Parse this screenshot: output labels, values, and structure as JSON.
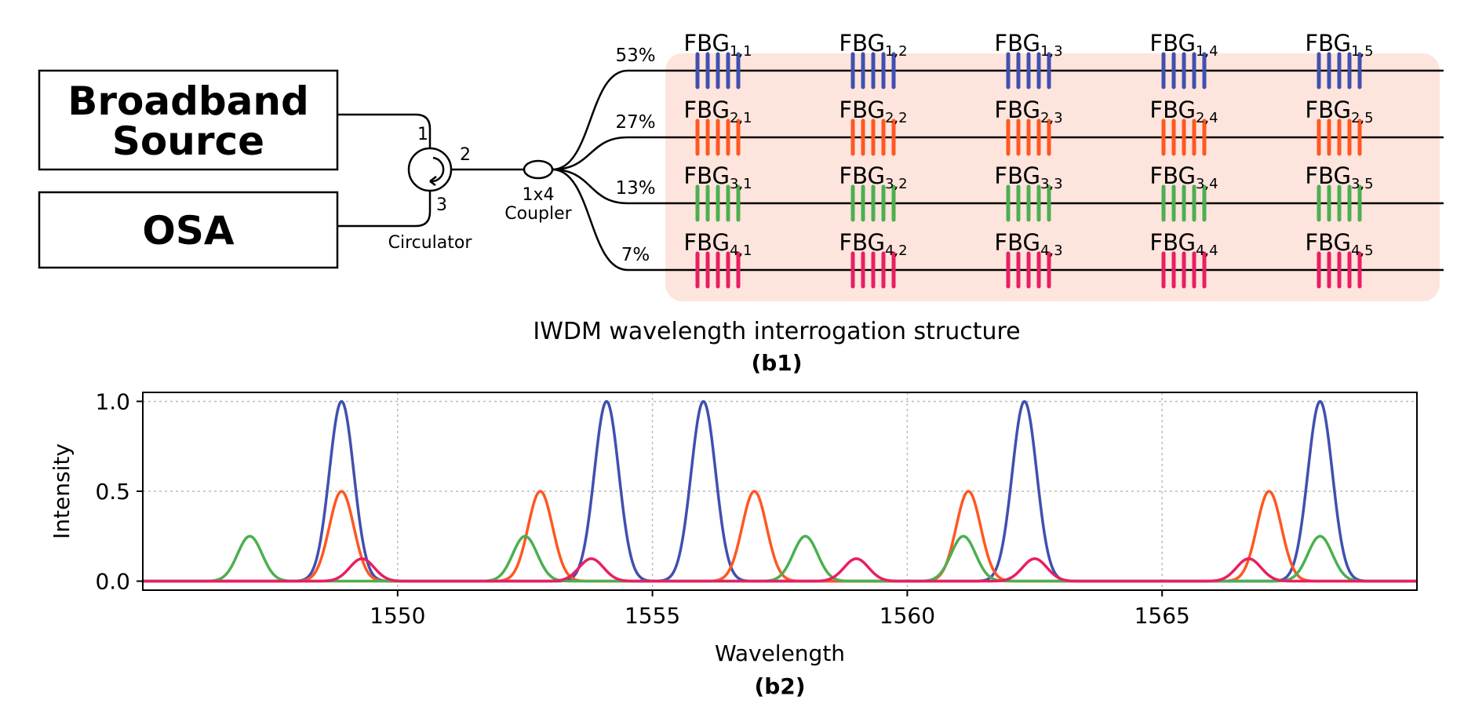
{
  "diagram": {
    "source_label_line1": "Broadband",
    "source_label_line2": "Source",
    "osa_label": "OSA",
    "circulator_label": "Circulator",
    "port1": "1",
    "port2": "2",
    "port3": "3",
    "coupler_line1": "1x4",
    "coupler_line2": "Coupler",
    "branch_ratios": [
      "53%",
      "27%",
      "13%",
      "7%"
    ],
    "fbg_prefix": "FBG",
    "fbg_subscripts": [
      [
        "1,1",
        "1,2",
        "1,3",
        "1,4",
        "1,5"
      ],
      [
        "2,1",
        "2,2",
        "2,3",
        "2,4",
        "2,5"
      ],
      [
        "3,1",
        "3,2",
        "3,3",
        "3,4",
        "3,5"
      ],
      [
        "4,1",
        "4,2",
        "4,3",
        "4,4",
        "4,5"
      ]
    ],
    "row_colors": [
      "#4050b0",
      "#ff5722",
      "#4caf50",
      "#e91e63"
    ],
    "shade_color": "#fde4dc",
    "caption": "IWDM wavelength interrogation structure",
    "panel_label": "(b1)"
  },
  "chart_data": {
    "type": "line",
    "xlabel": "Wavelength",
    "ylabel": "Intensity",
    "panel_label": "(b2)",
    "xlim": [
      1545,
      1570
    ],
    "ylim": [
      -0.05,
      1.05
    ],
    "xticks": [
      1550,
      1555,
      1560,
      1565
    ],
    "yticks": [
      0.0,
      0.5,
      1.0
    ],
    "ytick_labels": [
      "0.0",
      "0.5",
      "1.0"
    ],
    "grid": true,
    "series": [
      {
        "color": "#4050b0",
        "amplitude": 1.0,
        "centers": [
          1548.9,
          1554.1,
          1556.0,
          1562.3,
          1568.1
        ]
      },
      {
        "color": "#ff5722",
        "amplitude": 0.5,
        "centers": [
          1548.9,
          1552.8,
          1557.0,
          1561.2,
          1567.1
        ]
      },
      {
        "color": "#4caf50",
        "amplitude": 0.25,
        "centers": [
          1547.1,
          1552.5,
          1558.0,
          1561.1,
          1568.1
        ]
      },
      {
        "color": "#e91e63",
        "amplitude": 0.125,
        "centers": [
          1549.3,
          1553.8,
          1559.0,
          1562.5,
          1566.7
        ]
      }
    ]
  }
}
